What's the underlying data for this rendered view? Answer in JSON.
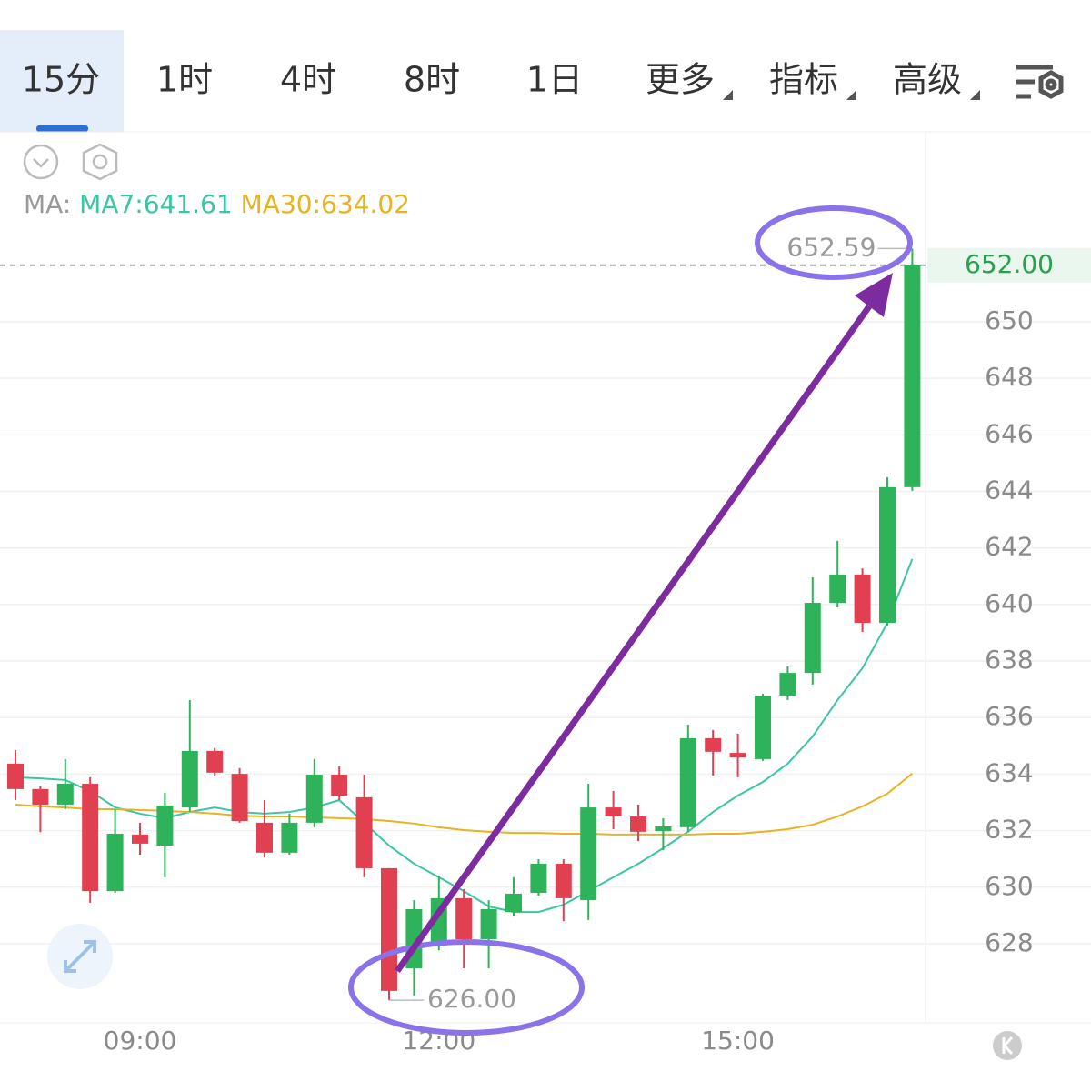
{
  "tabs": {
    "items": [
      "15分",
      "1时",
      "4时",
      "8时",
      "1日",
      "更多",
      "指标",
      "高级"
    ],
    "active": 0
  },
  "chart_data": {
    "type": "candlestick",
    "categories": [
      null,
      null,
      null,
      null,
      null,
      "09:00",
      null,
      null,
      null,
      null,
      null,
      null,
      null,
      null,
      null,
      null,
      null,
      "12:00",
      null,
      null,
      null,
      null,
      null,
      null,
      null,
      null,
      null,
      null,
      null,
      "15:00",
      null,
      null,
      null,
      null,
      null,
      null,
      null
    ],
    "open": [
      634.37,
      633.47,
      632.92,
      633.66,
      629.86,
      631.86,
      631.47,
      632.82,
      634.82,
      634.01,
      632.28,
      631.22,
      632.28,
      633.98,
      633.18,
      630.67,
      627.13,
      627.94,
      629.61,
      628.16,
      629.12,
      629.8,
      630.83,
      629.54,
      632.82,
      632.5,
      631.98,
      632.12,
      635.27,
      634.75,
      634.53,
      636.78,
      637.58,
      640.06,
      641.06,
      639.35,
      644.15
    ],
    "high": [
      634.85,
      633.57,
      634.53,
      633.89,
      632.76,
      632.28,
      633.34,
      636.62,
      634.92,
      634.21,
      633.08,
      632.6,
      634.53,
      634.27,
      633.98,
      630.67,
      629.54,
      630.41,
      629.93,
      629.54,
      630.35,
      630.99,
      630.99,
      633.66,
      633.4,
      632.92,
      632.44,
      635.75,
      635.56,
      635.43,
      636.84,
      637.81,
      640.96,
      642.25,
      641.28,
      644.5,
      652.59
    ],
    "low": [
      633.08,
      631.95,
      632.76,
      629.45,
      629.8,
      631.15,
      630.35,
      632.66,
      633.95,
      632.28,
      631.05,
      631.15,
      632.12,
      633.08,
      630.35,
      626.0,
      626.17,
      627.77,
      627.13,
      627.13,
      628.96,
      629.7,
      628.8,
      628.84,
      632.05,
      631.63,
      631.31,
      631.96,
      633.95,
      633.89,
      634.47,
      636.62,
      637.17,
      639.9,
      639.03,
      639.26,
      644.02
    ],
    "close": [
      633.47,
      632.92,
      633.66,
      629.86,
      631.89,
      631.54,
      632.89,
      634.82,
      634.05,
      632.34,
      631.22,
      632.28,
      633.98,
      633.24,
      630.67,
      626.33,
      629.22,
      629.61,
      628.16,
      629.22,
      629.77,
      630.83,
      629.61,
      632.82,
      632.5,
      631.96,
      632.15,
      635.27,
      634.79,
      634.59,
      636.78,
      637.58,
      640.06,
      641.06,
      639.35,
      644.15,
      652.0
    ],
    "up_color": "#2fb35a",
    "down_color": "#e0404f",
    "ma_prefix": "MA:",
    "ma_series": [
      {
        "label": "MA7:641.61",
        "color": "#3cc4a6",
        "values": [
          633.89,
          633.85,
          633.79,
          633.4,
          632.82,
          632.6,
          632.44,
          632.66,
          632.82,
          632.66,
          632.6,
          632.66,
          632.82,
          633.08,
          632.28,
          631.47,
          630.83,
          630.35,
          629.86,
          629.32,
          629.12,
          629.12,
          629.38,
          629.86,
          630.35,
          630.83,
          631.38,
          631.96,
          632.66,
          633.24,
          633.72,
          634.37,
          635.33,
          636.62,
          637.75,
          639.35,
          641.61
        ]
      },
      {
        "label": "MA30:634.02",
        "color": "#e8b321",
        "values": [
          632.92,
          632.86,
          632.82,
          632.76,
          632.76,
          632.73,
          632.7,
          632.66,
          632.6,
          632.53,
          632.5,
          632.5,
          632.47,
          632.44,
          632.41,
          632.34,
          632.25,
          632.12,
          632.02,
          631.96,
          631.92,
          631.92,
          631.89,
          631.89,
          631.86,
          631.86,
          631.86,
          631.86,
          631.89,
          631.89,
          631.96,
          632.05,
          632.21,
          632.5,
          632.86,
          633.31,
          634.02
        ]
      }
    ],
    "ylim": [
      625.2,
      656.56
    ],
    "yticks": [
      628,
      630,
      632,
      634,
      636,
      638,
      640,
      642,
      644,
      646,
      648,
      650
    ],
    "grid": true,
    "last_price": {
      "value": 652,
      "label": "652.00"
    },
    "high_label": {
      "value": 652.59,
      "label": "652.59"
    },
    "low_label": {
      "value": 626,
      "label": "626.00"
    }
  }
}
